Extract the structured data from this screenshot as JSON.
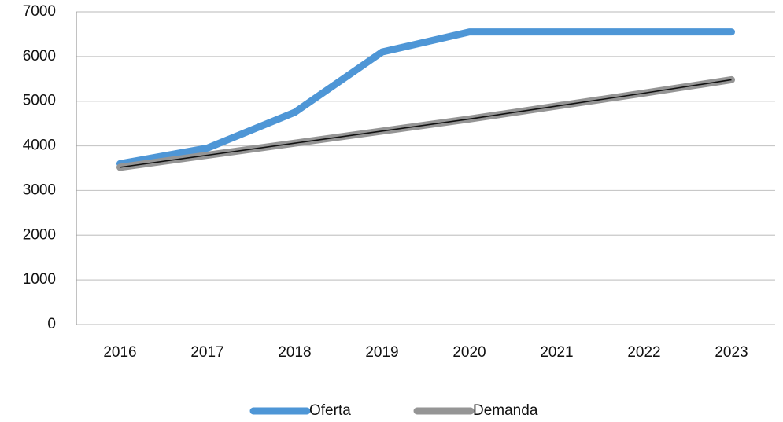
{
  "chart_data": {
    "type": "line",
    "categories": [
      "2016",
      "2017",
      "2018",
      "2019",
      "2020",
      "2021",
      "2022",
      "2023"
    ],
    "series": [
      {
        "name": "Oferta",
        "color": "#4e96d6",
        "values": [
          3600,
          3950,
          4750,
          6100,
          6550,
          6550,
          6550,
          6550
        ]
      },
      {
        "name": "Demanda",
        "color": "#959595",
        "values": [
          3520,
          3790,
          4060,
          4330,
          4600,
          4890,
          5180,
          5480
        ]
      }
    ],
    "ylim": [
      0,
      7000
    ],
    "yticks": [
      0,
      1000,
      2000,
      3000,
      4000,
      5000,
      6000,
      7000
    ],
    "grid": true,
    "legend": "bottom"
  }
}
